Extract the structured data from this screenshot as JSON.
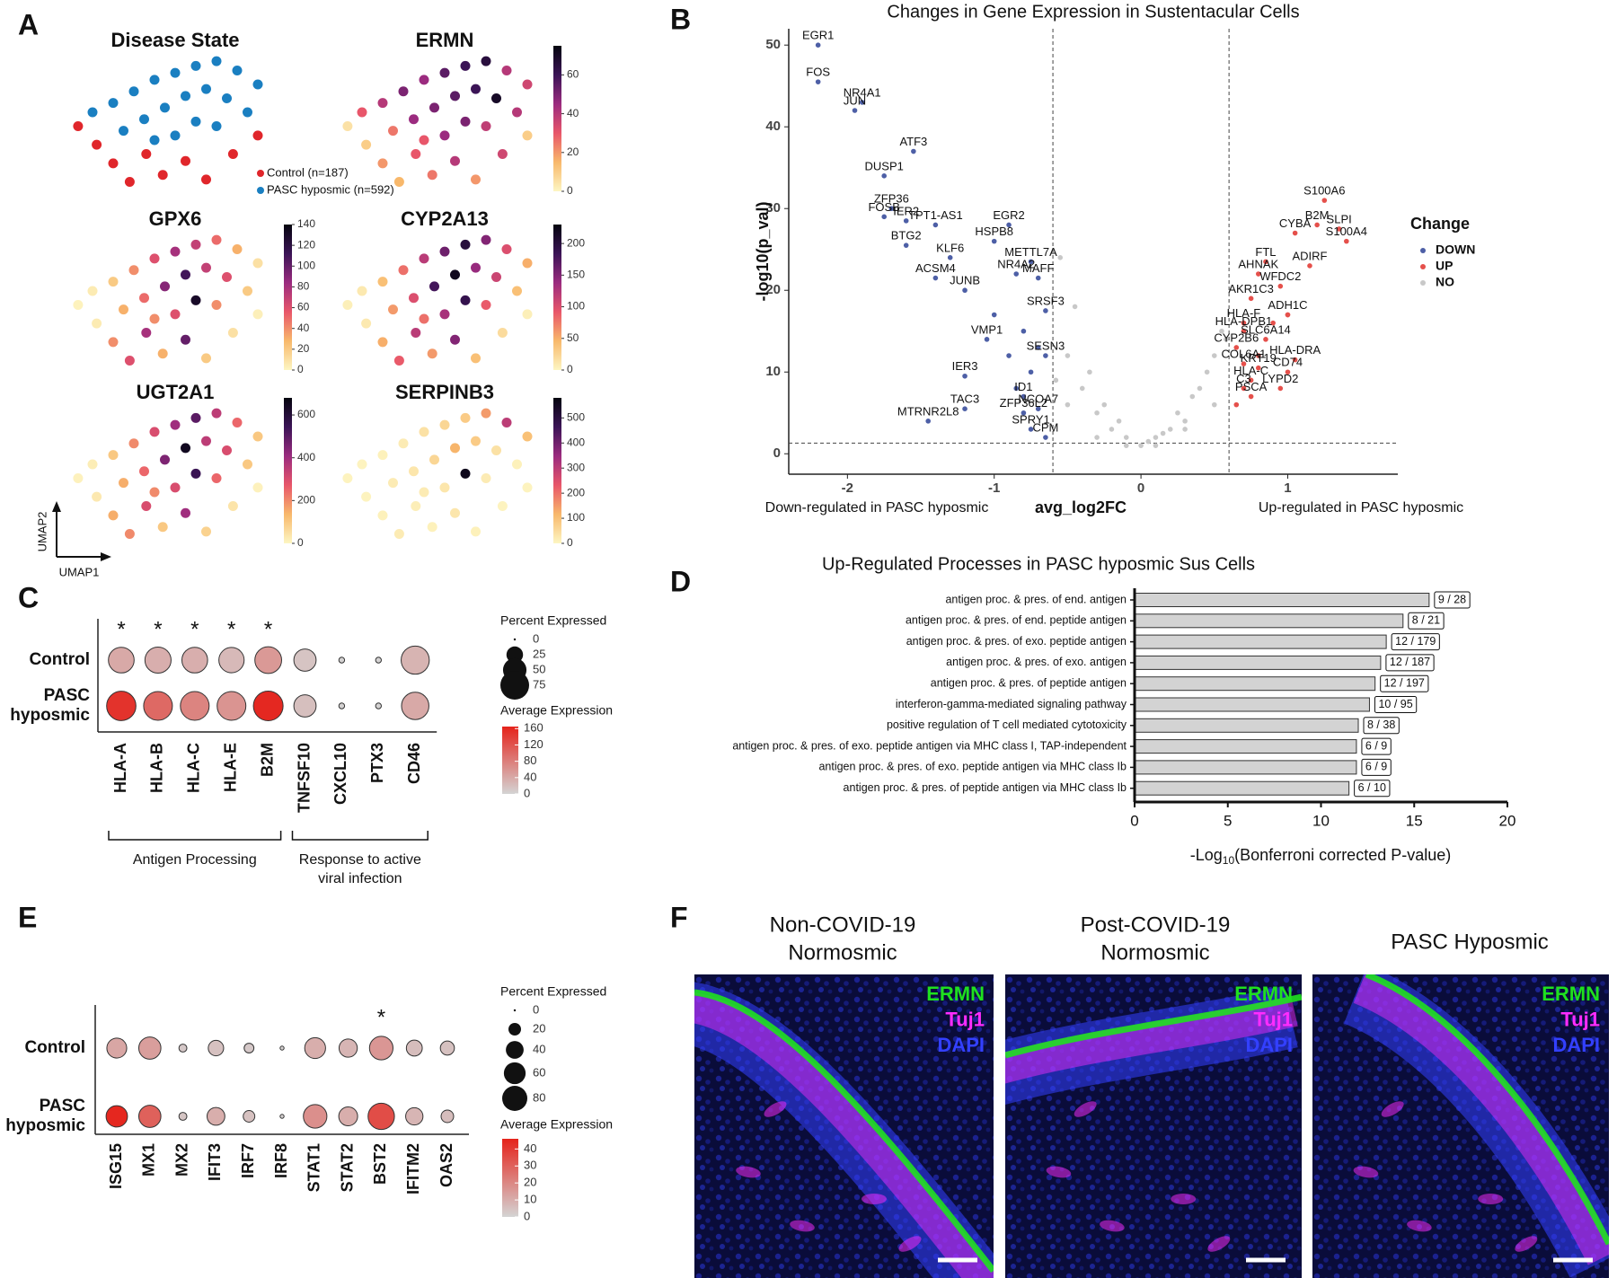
{
  "chart_data": [
    {
      "type": "umap",
      "panel": "A",
      "title": "Disease State",
      "x_label": "UMAP1",
      "y_label": "UMAP2",
      "xlim": [
        0,
        10
      ],
      "ylim": [
        0,
        6
      ],
      "series": [
        {
          "name": "Control (n=187)",
          "color": "#e0262b",
          "x": [
            0.3,
            1.2,
            2.0,
            2.8,
            3.6,
            4.4,
            5.5,
            6.5,
            7.8,
            9.0
          ],
          "y": [
            3.0,
            2.2,
            1.4,
            0.6,
            1.8,
            0.9,
            1.5,
            0.7,
            1.8,
            2.6
          ]
        },
        {
          "name": "PASC hyposmic (n=592)",
          "color": "#1a7fc1",
          "x": [
            1.0,
            2.0,
            3.0,
            4.0,
            5.0,
            6.0,
            7.0,
            8.0,
            9.0,
            2.5,
            3.5,
            4.5,
            5.5,
            6.5,
            7.5,
            8.5,
            4.0,
            5.0,
            6.0,
            7.0
          ],
          "y": [
            3.6,
            4.0,
            4.5,
            5.0,
            5.3,
            5.6,
            5.8,
            5.4,
            4.8,
            2.8,
            3.3,
            3.8,
            4.3,
            4.6,
            4.2,
            3.6,
            2.4,
            2.6,
            3.2,
            3.0
          ]
        }
      ],
      "colormap": [
        "#fdf6c3",
        "#f8b86b",
        "#e8566a",
        "#9b2b7f",
        "#3b1456",
        "#05050f"
      ],
      "features": [
        {
          "title": "ERMN",
          "clim": [
            0,
            75
          ],
          "cticks": [
            0,
            20,
            40,
            60
          ],
          "values": [
            5,
            10,
            20,
            15,
            30,
            25,
            40,
            20,
            35,
            10,
            30,
            40,
            50,
            45,
            55,
            60,
            65,
            40,
            35,
            25,
            45,
            50,
            55,
            60,
            70,
            40,
            30,
            45,
            50,
            38
          ]
        },
        {
          "title": "GPX6",
          "clim": [
            0,
            140
          ],
          "cticks": [
            0,
            20,
            40,
            60,
            80,
            100,
            120,
            140
          ],
          "values": [
            2,
            5,
            40,
            60,
            80,
            30,
            100,
            20,
            10,
            3,
            5,
            20,
            40,
            60,
            80,
            70,
            50,
            30,
            10,
            30,
            50,
            90,
            110,
            70,
            60,
            20,
            40,
            60,
            130,
            40
          ]
        },
        {
          "title": "CYP2A13",
          "clim": [
            0,
            230
          ],
          "cticks": [
            0,
            50,
            100,
            150,
            200
          ],
          "values": [
            5,
            10,
            50,
            90,
            120,
            60,
            150,
            40,
            20,
            5,
            10,
            40,
            80,
            120,
            160,
            200,
            150,
            100,
            50,
            60,
            100,
            180,
            220,
            140,
            110,
            40,
            80,
            130,
            190,
            90
          ]
        },
        {
          "title": "UGT2A1",
          "clim": [
            0,
            680
          ],
          "cticks": [
            0,
            200,
            400,
            600
          ],
          "values": [
            10,
            30,
            150,
            200,
            300,
            100,
            400,
            80,
            40,
            10,
            20,
            100,
            200,
            300,
            400,
            500,
            350,
            250,
            100,
            150,
            250,
            450,
            650,
            350,
            300,
            100,
            200,
            300,
            550,
            250
          ]
        },
        {
          "title": "SERPINB3",
          "clim": [
            0,
            580
          ],
          "cticks": [
            0,
            100,
            200,
            300,
            400,
            500
          ],
          "values": [
            5,
            5,
            10,
            20,
            15,
            10,
            30,
            10,
            5,
            5,
            5,
            10,
            20,
            40,
            60,
            80,
            150,
            300,
            100,
            20,
            30,
            60,
            120,
            80,
            40,
            10,
            20,
            30,
            560,
            20
          ]
        }
      ]
    },
    {
      "type": "volcano",
      "panel": "B",
      "title": "Changes in Gene Expression in Sustentacular Cells",
      "x_label": "avg_log2FC",
      "y_label": "-log10(p_val)",
      "annotations": [
        "Down-regulated in PASC hyposmic",
        "Up-regulated in PASC hyposmic"
      ],
      "legend_title": "Change",
      "xlim": [
        -2.4,
        1.75
      ],
      "ylim": [
        -2.5,
        52
      ],
      "xticks": [
        -2,
        -1,
        0,
        1
      ],
      "yticks": [
        0,
        10,
        20,
        30,
        40,
        50
      ],
      "thresholds": {
        "x": [
          -0.6,
          0.6
        ],
        "y": [
          1.3
        ]
      },
      "series": [
        {
          "name": "DOWN",
          "color": "#4d5fa6",
          "x": [
            -2.2,
            -2.2,
            -1.9,
            -1.95,
            -1.55,
            -1.75,
            -1.7,
            -1.75,
            -1.6,
            -1.4,
            -0.9,
            -1.6,
            -1.0,
            -1.3,
            -1.4,
            -0.75,
            -0.85,
            -0.7,
            -1.2,
            -0.65,
            -1.05,
            -0.65,
            -1.2,
            -1.2,
            -0.8,
            -0.8,
            -0.7,
            -1.45,
            -0.75,
            -0.65,
            -0.9,
            -0.8,
            -0.75,
            -1.0,
            -0.85,
            -0.7
          ],
          "y": [
            50,
            45.5,
            43,
            42,
            37,
            34,
            30,
            29,
            28.5,
            28,
            28,
            25.5,
            26,
            24,
            21.5,
            23.5,
            22,
            21.5,
            20,
            17.5,
            14,
            12,
            9.5,
            5.5,
            7,
            5,
            5.5,
            4,
            3,
            2,
            12,
            15,
            10,
            17,
            8,
            13
          ],
          "labels": [
            "EGR1",
            "FOS",
            "NR4A1",
            "JUN",
            "ATF3",
            "DUSP1",
            "ZFP36",
            "FOSB",
            "IER2",
            "TPT1-AS1",
            "EGR2",
            "BTG2",
            "HSPB8",
            "KLF6",
            "ACSM4",
            "METTL7A",
            "NR4A2",
            "MAFF",
            "JUNB",
            "SRSF3",
            "VMP1",
            "SESN3",
            "IER3",
            "TAC3",
            "ID1",
            "ZFP36L2",
            "NCOA7",
            "MTRNR2L8",
            "SPRY1",
            "CPM",
            null,
            null,
            null,
            null,
            null,
            null
          ]
        },
        {
          "name": "UP",
          "color": "#e5504b",
          "x": [
            1.25,
            1.2,
            1.35,
            1.4,
            1.05,
            0.85,
            0.8,
            1.15,
            0.75,
            0.95,
            0.7,
            0.7,
            1.0,
            0.85,
            0.65,
            1.05,
            0.7,
            0.8,
            1.0,
            0.75,
            0.7,
            0.95,
            0.75,
            0.65,
            0.9,
            1.0,
            0.8
          ],
          "y": [
            31,
            28,
            27.5,
            26,
            27,
            23.5,
            22,
            23,
            19,
            20.5,
            16,
            15,
            17,
            14,
            13,
            11.5,
            11,
            10.5,
            10,
            9,
            8,
            8,
            7,
            6,
            16,
            17,
            12
          ],
          "labels": [
            "S100A6",
            "B2M",
            "SLPI",
            "S100A4",
            "CYBA",
            "FTL",
            "AHNAK",
            "ADIRF",
            "AKR1C3",
            "WFDC2",
            "HLA-F",
            "HLA-DPB1",
            "ADH1C",
            "SLC6A14",
            "CYP2B6",
            "HLA-DRA",
            "COL6A1",
            "KRT19",
            "CD74",
            "HLA-C",
            "C3",
            "LYPD2",
            "PSCA",
            null,
            null,
            null,
            null
          ]
        },
        {
          "name": "NO",
          "color": "#c8c8c8",
          "x": [
            -0.5,
            -0.4,
            -0.3,
            -0.2,
            -0.1,
            0,
            0.1,
            0.2,
            0.3,
            0.4,
            0.5,
            -0.45,
            -0.35,
            -0.25,
            -0.15,
            0.05,
            0.15,
            0.25,
            0.35,
            0.45,
            -0.55,
            0.55,
            -0.5,
            0.5,
            -0.3,
            0.3,
            -0.1,
            0.1,
            -0.58,
            0.58
          ],
          "y": [
            12,
            8,
            5,
            3,
            2,
            1,
            2,
            3,
            4,
            8,
            12,
            18,
            10,
            6,
            4,
            1.5,
            2.5,
            5,
            7,
            10,
            24,
            15,
            6,
            6,
            2,
            3,
            1,
            1,
            9,
            14
          ]
        }
      ]
    },
    {
      "type": "dotplot",
      "panel": "C",
      "categories": [
        "HLA-A",
        "HLA-B",
        "HLA-C",
        "HLA-E",
        "B2M",
        "TNFSF10",
        "CXCL10",
        "PTX3",
        "CD46"
      ],
      "annotations": [
        "*",
        "*",
        "*",
        "*",
        "*",
        null,
        null,
        null,
        null
      ],
      "series": [
        {
          "name": "Control",
          "sizes": [
            60,
            62,
            60,
            58,
            65,
            45,
            3,
            3,
            72
          ],
          "values": [
            40,
            35,
            35,
            25,
            55,
            15,
            2,
            2,
            30
          ]
        },
        {
          "name": "PASC hyposmic",
          "sizes": [
            78,
            75,
            75,
            75,
            80,
            45,
            3,
            3,
            68
          ],
          "values": [
            150,
            100,
            75,
            60,
            160,
            20,
            2,
            2,
            40
          ]
        }
      ],
      "size_legend": {
        "title": "Percent Expressed",
        "values": [
          0,
          25,
          50,
          75
        ]
      },
      "color_legend": {
        "title": "Average Expression",
        "clim": [
          0,
          165
        ],
        "ticks": [
          0,
          40,
          80,
          120,
          160
        ],
        "colors": [
          "#d4d4d4",
          "#e5231b"
        ]
      },
      "brackets": [
        [
          "Antigen Processing"
        ],
        [
          "Response to active",
          "viral infection"
        ]
      ]
    },
    {
      "type": "barh",
      "panel": "D",
      "title": "Up-Regulated Processes in PASC hyposmic Sus Cells",
      "x_label": {
        "main": "-Log",
        "sub": "10",
        "rest": "(Bonferroni corrected P-value)"
      },
      "categories": [
        "antigen proc. & pres. of end. antigen",
        "antigen proc. & pres. of end. peptide antigen",
        "antigen proc. & pres. of exo. peptide antigen",
        "antigen proc. & pres. of exo. antigen",
        "antigen proc. & pres. of peptide antigen",
        "interferon-gamma-mediated signaling pathway",
        "positive regulation of T cell mediated cytotoxicity",
        "antigen proc. & pres. of exo. peptide antigen via MHC class I, TAP-independent",
        "antigen proc. & pres. of exo. peptide antigen via MHC class Ib",
        "antigen proc. & pres. of peptide antigen via MHC class Ib"
      ],
      "values": [
        15.8,
        14.4,
        13.5,
        13.2,
        12.9,
        12.6,
        12.0,
        11.9,
        11.9,
        11.5
      ],
      "annotations": [
        "9 / 28",
        "8 / 21",
        "12 / 179",
        "12 / 187",
        "12 / 197",
        "10 / 95",
        "8 / 38",
        "6 / 9",
        "6 / 9",
        "6 / 10"
      ],
      "color": "#d3d3d3",
      "xlim": [
        0,
        20
      ],
      "xticks": [
        0,
        5,
        10,
        15,
        20
      ]
    },
    {
      "type": "dotplot",
      "panel": "E",
      "categories": [
        "ISG15",
        "MX1",
        "MX2",
        "IFIT3",
        "IRF7",
        "IRF8",
        "STAT1",
        "STAT2",
        "BST2",
        "IFITM2",
        "OAS2"
      ],
      "annotations": [
        null,
        null,
        null,
        null,
        null,
        null,
        null,
        null,
        "*",
        null,
        null
      ],
      "series": [
        {
          "name": "Control",
          "sizes": [
            50,
            62,
            8,
            30,
            12,
            2,
            55,
            42,
            70,
            32,
            25
          ],
          "values": [
            12,
            14,
            3,
            5,
            3,
            1,
            10,
            8,
            16,
            6,
            5
          ]
        },
        {
          "name": "PASC hyposmic",
          "sizes": [
            58,
            62,
            8,
            40,
            17,
            2,
            70,
            45,
            88,
            38,
            20
          ],
          "values": [
            45,
            30,
            4,
            10,
            5,
            1,
            18,
            10,
            35,
            8,
            6
          ]
        }
      ],
      "size_legend": {
        "title": "Percent Expressed",
        "values": [
          0,
          20,
          40,
          60,
          80
        ]
      },
      "color_legend": {
        "title": "Average Expression",
        "clim": [
          0,
          46
        ],
        "ticks": [
          0,
          10,
          20,
          30,
          40
        ],
        "colors": [
          "#d4d4d4",
          "#e5231b"
        ]
      }
    },
    {
      "type": "micrograph",
      "panel": "F",
      "panels": [
        {
          "title": [
            "Non-COVID-19",
            "Normosmic"
          ]
        },
        {
          "title": [
            "Post-COVID-19",
            "Normosmic"
          ]
        },
        {
          "title": [
            "PASC Hyposmic"
          ]
        }
      ],
      "channels": [
        {
          "name": "ERMN",
          "color": "#1fe01f"
        },
        {
          "name": "Tuj1",
          "color": "#ff2cff"
        },
        {
          "name": "DAPI",
          "color": "#3340ff"
        }
      ]
    }
  ]
}
